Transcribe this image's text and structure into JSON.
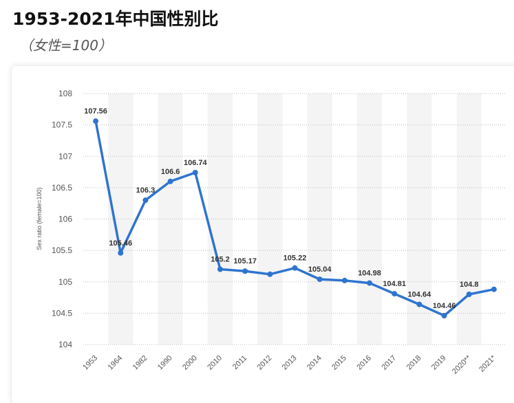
{
  "chart_data": {
    "type": "line",
    "title": "1953-2021年中国性别比",
    "subtitle": "（女性=100）",
    "ylabel": "Sex ratio (female=100)",
    "categories": [
      "1953",
      "1964",
      "1982",
      "1990",
      "2000",
      "2010",
      "2011",
      "2012",
      "2013",
      "2014",
      "2015",
      "2016",
      "2017",
      "2018",
      "2019",
      "2020**",
      "2021*"
    ],
    "series": [
      {
        "name": "Sex ratio",
        "color": "#2f74cf",
        "values": [
          107.56,
          105.46,
          106.3,
          106.6,
          106.74,
          105.2,
          105.17,
          105.12,
          105.22,
          105.04,
          105.02,
          104.98,
          104.81,
          104.64,
          104.46,
          104.8,
          104.88
        ],
        "value_labels": [
          "107.56",
          "105.46",
          "106.3",
          "106.6",
          "106.74",
          "105.2",
          "105.17",
          null,
          "105.22",
          "105.04",
          null,
          "104.98",
          "104.81",
          "104.64",
          "104.46",
          "104.8",
          null
        ]
      }
    ],
    "ylim": [
      104,
      108
    ],
    "yticks": [
      104,
      104.5,
      105,
      105.5,
      106,
      106.5,
      107,
      107.5,
      108
    ],
    "grid": true
  }
}
